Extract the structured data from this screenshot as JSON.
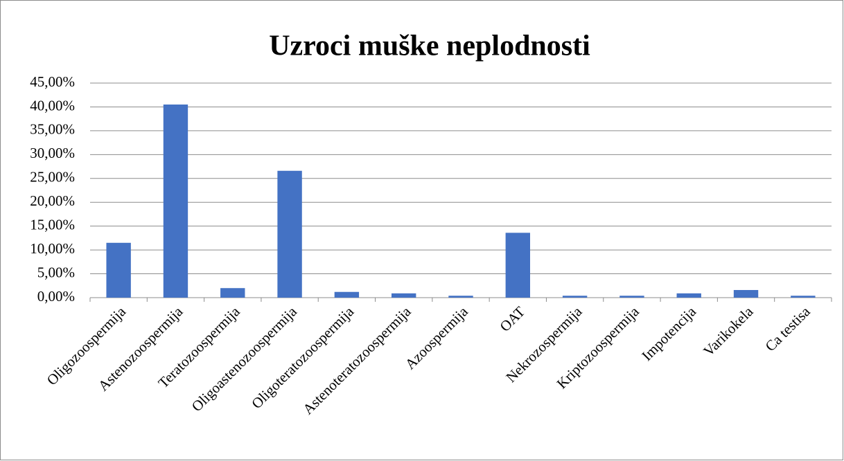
{
  "chart_data": {
    "type": "bar",
    "title": "Uzroci muške neplodnosti",
    "categories": [
      "Oligozoospermija",
      "Astenozoospermija",
      "Teratozoospermija",
      "Oligoastenozoospermija",
      "Oligoteratozoospermija",
      "Astenoteratozoospermija",
      "Azoospermija",
      "OAT",
      "Nekrozospermija",
      "Kriptozoospermija",
      "Impotencija",
      "Varikokela",
      "Ca testisa"
    ],
    "values": [
      11.5,
      40.5,
      2.0,
      26.6,
      1.2,
      0.9,
      0.4,
      13.6,
      0.4,
      0.4,
      0.9,
      1.6,
      0.4
    ],
    "color": "#4472c4",
    "ylim": [
      0,
      45
    ],
    "yticks": [
      {
        "value": 0,
        "label": "0,00%"
      },
      {
        "value": 5,
        "label": "5,00%"
      },
      {
        "value": 10,
        "label": "10,00%"
      },
      {
        "value": 15,
        "label": "15,00%"
      },
      {
        "value": 20,
        "label": "20,00%"
      },
      {
        "value": 25,
        "label": "25,00%"
      },
      {
        "value": 30,
        "label": "30,00%"
      },
      {
        "value": 35,
        "label": "35,00%"
      },
      {
        "value": 40,
        "label": "40,00%"
      },
      {
        "value": 45,
        "label": "45,00%"
      }
    ],
    "grid": true
  }
}
